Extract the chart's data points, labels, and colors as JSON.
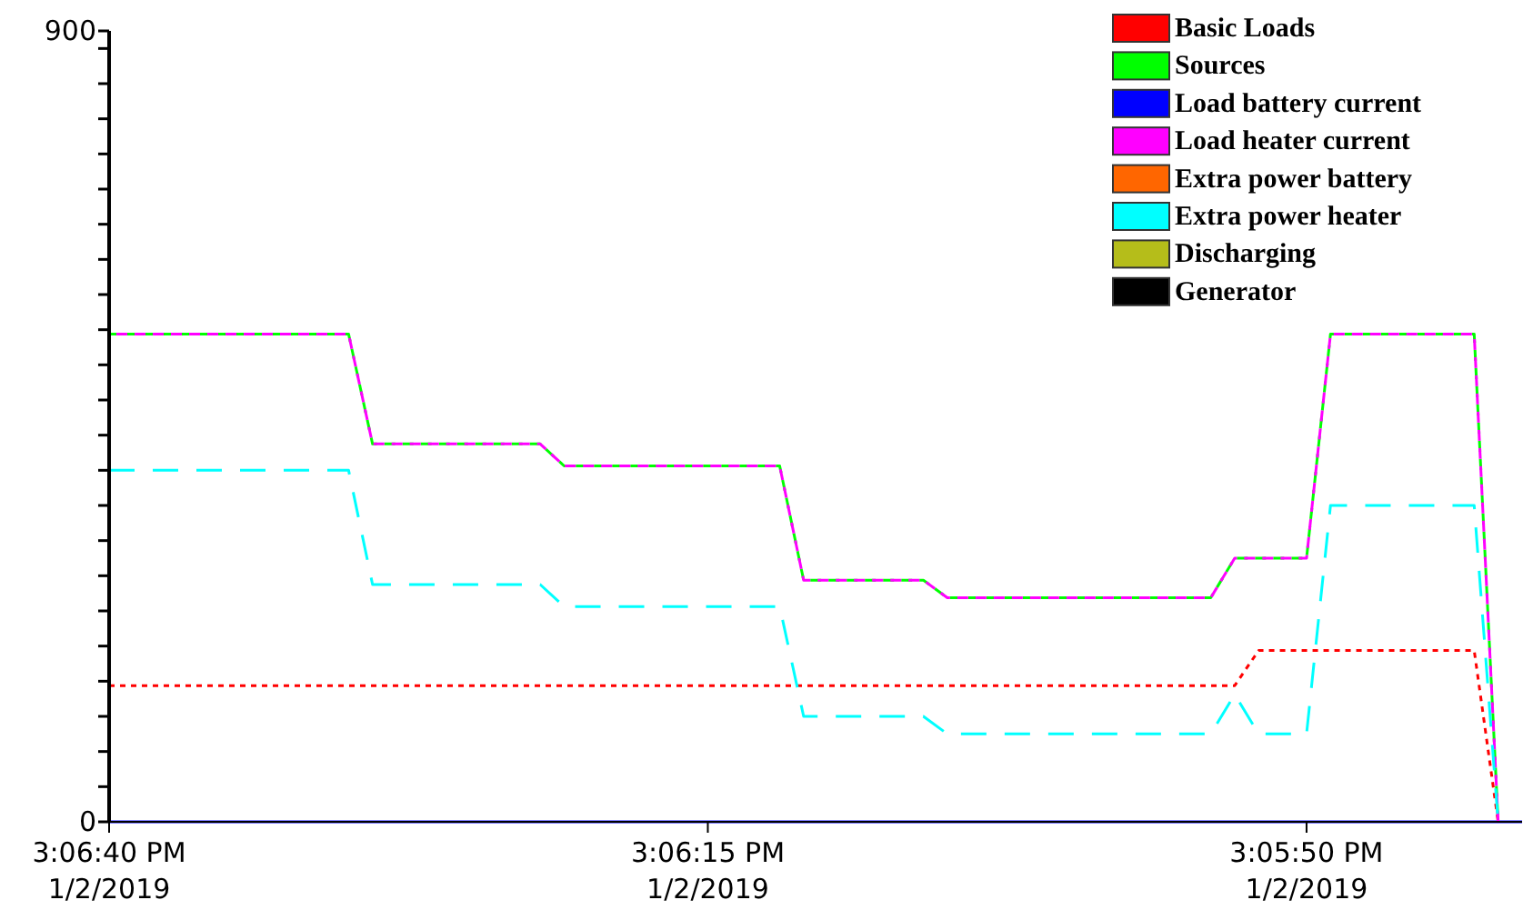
{
  "chart_data": {
    "type": "line",
    "legend": "top right",
    "xlim": [
      "2019-01-02T15:06:40",
      "2019-01-02T15:05:41"
    ],
    "ylim": [
      0,
      900
    ],
    "xticks": [
      {
        "value": "2019-01-02T15:06:40",
        "label": "3:06:40 PM\n1/2/2019"
      },
      {
        "value": "2019-01-02T15:06:15",
        "label": "3:06:15 PM\n1/2/2019"
      },
      {
        "value": "2019-01-02T15:05:50",
        "label": "3:05:50 PM\n1/2/2019"
      }
    ],
    "yticks": [
      0,
      {
        "value": 40,
        "label": null
      },
      {
        "value": 80,
        "label": null
      },
      {
        "value": 120,
        "label": null
      },
      {
        "value": 160,
        "label": null
      },
      {
        "value": 200,
        "label": null
      },
      {
        "value": 240,
        "label": null
      },
      {
        "value": 280,
        "label": null
      },
      {
        "value": 320,
        "label": null
      },
      {
        "value": 360,
        "label": null
      },
      {
        "value": 400,
        "label": null
      },
      {
        "value": 440,
        "label": null
      },
      {
        "value": 480,
        "label": null
      },
      {
        "value": 520,
        "label": null
      },
      {
        "value": 560,
        "label": null
      },
      {
        "value": 600,
        "label": null
      },
      {
        "value": 640,
        "label": null
      },
      {
        "value": 680,
        "label": null
      },
      {
        "value": 720,
        "label": null
      },
      {
        "value": 760,
        "label": null
      },
      {
        "value": 800,
        "label": null
      },
      {
        "value": 840,
        "label": null
      },
      {
        "value": 880,
        "label": null
      },
      900
    ],
    "series": [
      {
        "name": "Basic Loads",
        "color": "#ff0000",
        "line_style": "dotted",
        "x": [
          "2019-01-02T15:06:40",
          "2019-01-02T15:05:53",
          "2019-01-02T15:05:52",
          "2019-01-02T15:05:43",
          "2019-01-02T15:05:42"
        ],
        "values": [
          155,
          155,
          195,
          195,
          0
        ]
      },
      {
        "name": "Sources",
        "color": "#00ff00",
        "line_style": "dashed",
        "x": [
          "2019-01-02T15:06:40",
          "2019-01-02T15:06:30",
          "2019-01-02T15:06:29",
          "2019-01-02T15:06:22",
          "2019-01-02T15:06:21",
          "2019-01-02T15:06:12",
          "2019-01-02T15:06:11",
          "2019-01-02T15:06:06",
          "2019-01-02T15:06:05",
          "2019-01-02T15:05:54",
          "2019-01-02T15:05:53",
          "2019-01-02T15:05:50",
          "2019-01-02T15:05:49",
          "2019-01-02T15:05:43",
          "2019-01-02T15:05:42"
        ],
        "values": [
          555,
          555,
          430,
          430,
          405,
          405,
          275,
          275,
          255,
          255,
          300,
          300,
          555,
          555,
          0
        ]
      },
      {
        "name": "Load battery current",
        "color": "#0000ff",
        "line_style": "solid",
        "x": [
          "2019-01-02T15:06:40",
          "2019-01-02T15:05:41"
        ],
        "values": [
          0,
          0
        ]
      },
      {
        "name": "Load heater current",
        "color": "#ff00ff",
        "line_style": "dashed",
        "x": [
          "2019-01-02T15:06:40",
          "2019-01-02T15:06:30",
          "2019-01-02T15:06:29",
          "2019-01-02T15:06:22",
          "2019-01-02T15:06:21",
          "2019-01-02T15:06:12",
          "2019-01-02T15:06:11",
          "2019-01-02T15:06:06",
          "2019-01-02T15:06:05",
          "2019-01-02T15:05:54",
          "2019-01-02T15:05:53",
          "2019-01-02T15:05:50",
          "2019-01-02T15:05:49",
          "2019-01-02T15:05:43",
          "2019-01-02T15:05:42"
        ],
        "values": [
          555,
          555,
          430,
          430,
          405,
          405,
          275,
          275,
          255,
          255,
          300,
          300,
          555,
          555,
          0
        ]
      },
      {
        "name": "Extra power battery",
        "color": "#ff6600"
      },
      {
        "name": "Extra power heater",
        "color": "#00ffff",
        "line_style": "dashed",
        "x": [
          "2019-01-02T15:06:40",
          "2019-01-02T15:06:30",
          "2019-01-02T15:06:29",
          "2019-01-02T15:06:22",
          "2019-01-02T15:06:21",
          "2019-01-02T15:06:12",
          "2019-01-02T15:06:11",
          "2019-01-02T15:06:06",
          "2019-01-02T15:06:05",
          "2019-01-02T15:05:54",
          "2019-01-02T15:05:53",
          "2019-01-02T15:05:52",
          "2019-01-02T15:05:50",
          "2019-01-02T15:05:49",
          "2019-01-02T15:05:43",
          "2019-01-02T15:05:42"
        ],
        "values": [
          400,
          400,
          270,
          270,
          245,
          245,
          120,
          120,
          100,
          100,
          145,
          100,
          100,
          360,
          360,
          0
        ]
      },
      {
        "name": "Discharging",
        "color": "#b5bd1a"
      },
      {
        "name": "Generator",
        "color": "#000000"
      }
    ]
  }
}
